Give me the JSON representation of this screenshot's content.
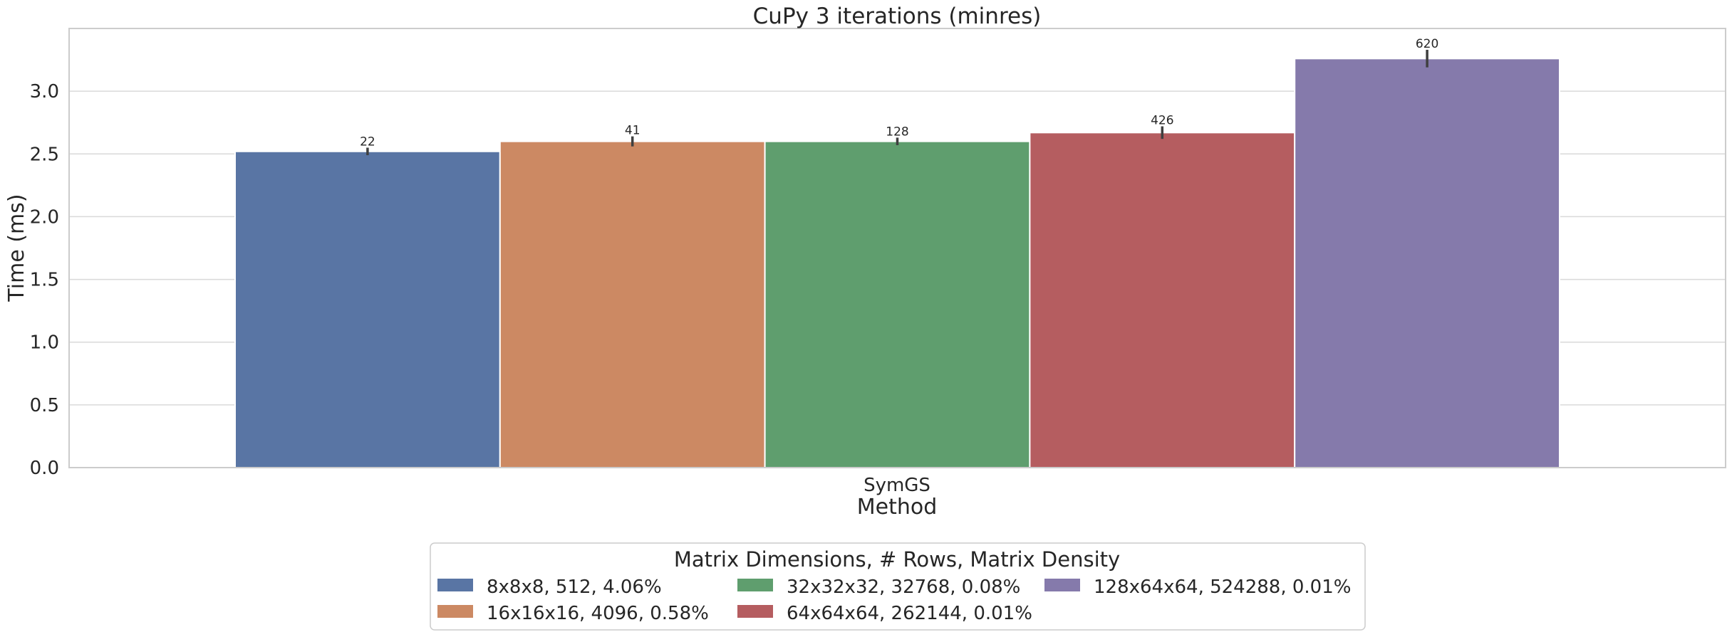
{
  "chart_data": {
    "type": "bar",
    "title": "CuPy 3 iterations (minres)",
    "xlabel": "Method",
    "ylabel": "Time (ms)",
    "categories": [
      "SymGS"
    ],
    "ylim": [
      0,
      3.5
    ],
    "yticks": [
      "0.0",
      "0.5",
      "1.0",
      "1.5",
      "2.0",
      "2.5",
      "3.0"
    ],
    "grid": true,
    "legend": {
      "title": "Matrix Dimensions, # Rows, Matrix Density",
      "placement": "bottom-center",
      "columns": 3
    },
    "series": [
      {
        "name": "8x8x8, 512, 4.06%",
        "values": [
          2.52
        ],
        "error": [
          0.03
        ],
        "label": "22",
        "color": "#5975a4"
      },
      {
        "name": "16x16x16, 4096, 0.58%",
        "values": [
          2.6
        ],
        "error": [
          0.04
        ],
        "label": "41",
        "color": "#cc8963"
      },
      {
        "name": "32x32x32, 32768, 0.08%",
        "values": [
          2.6
        ],
        "error": [
          0.03
        ],
        "label": "128",
        "color": "#5f9e6e"
      },
      {
        "name": "64x64x64, 262144, 0.01%",
        "values": [
          2.67
        ],
        "error": [
          0.05
        ],
        "label": "426",
        "color": "#b55d60"
      },
      {
        "name": "128x64x64, 524288, 0.01%",
        "values": [
          3.26
        ],
        "error": [
          0.07
        ],
        "label": "620",
        "color": "#857aab"
      }
    ]
  },
  "colors": {
    "grid": "#d9d9d9",
    "frame": "#cccccc",
    "text": "#262626",
    "errorbar": "#3f3f3f"
  }
}
